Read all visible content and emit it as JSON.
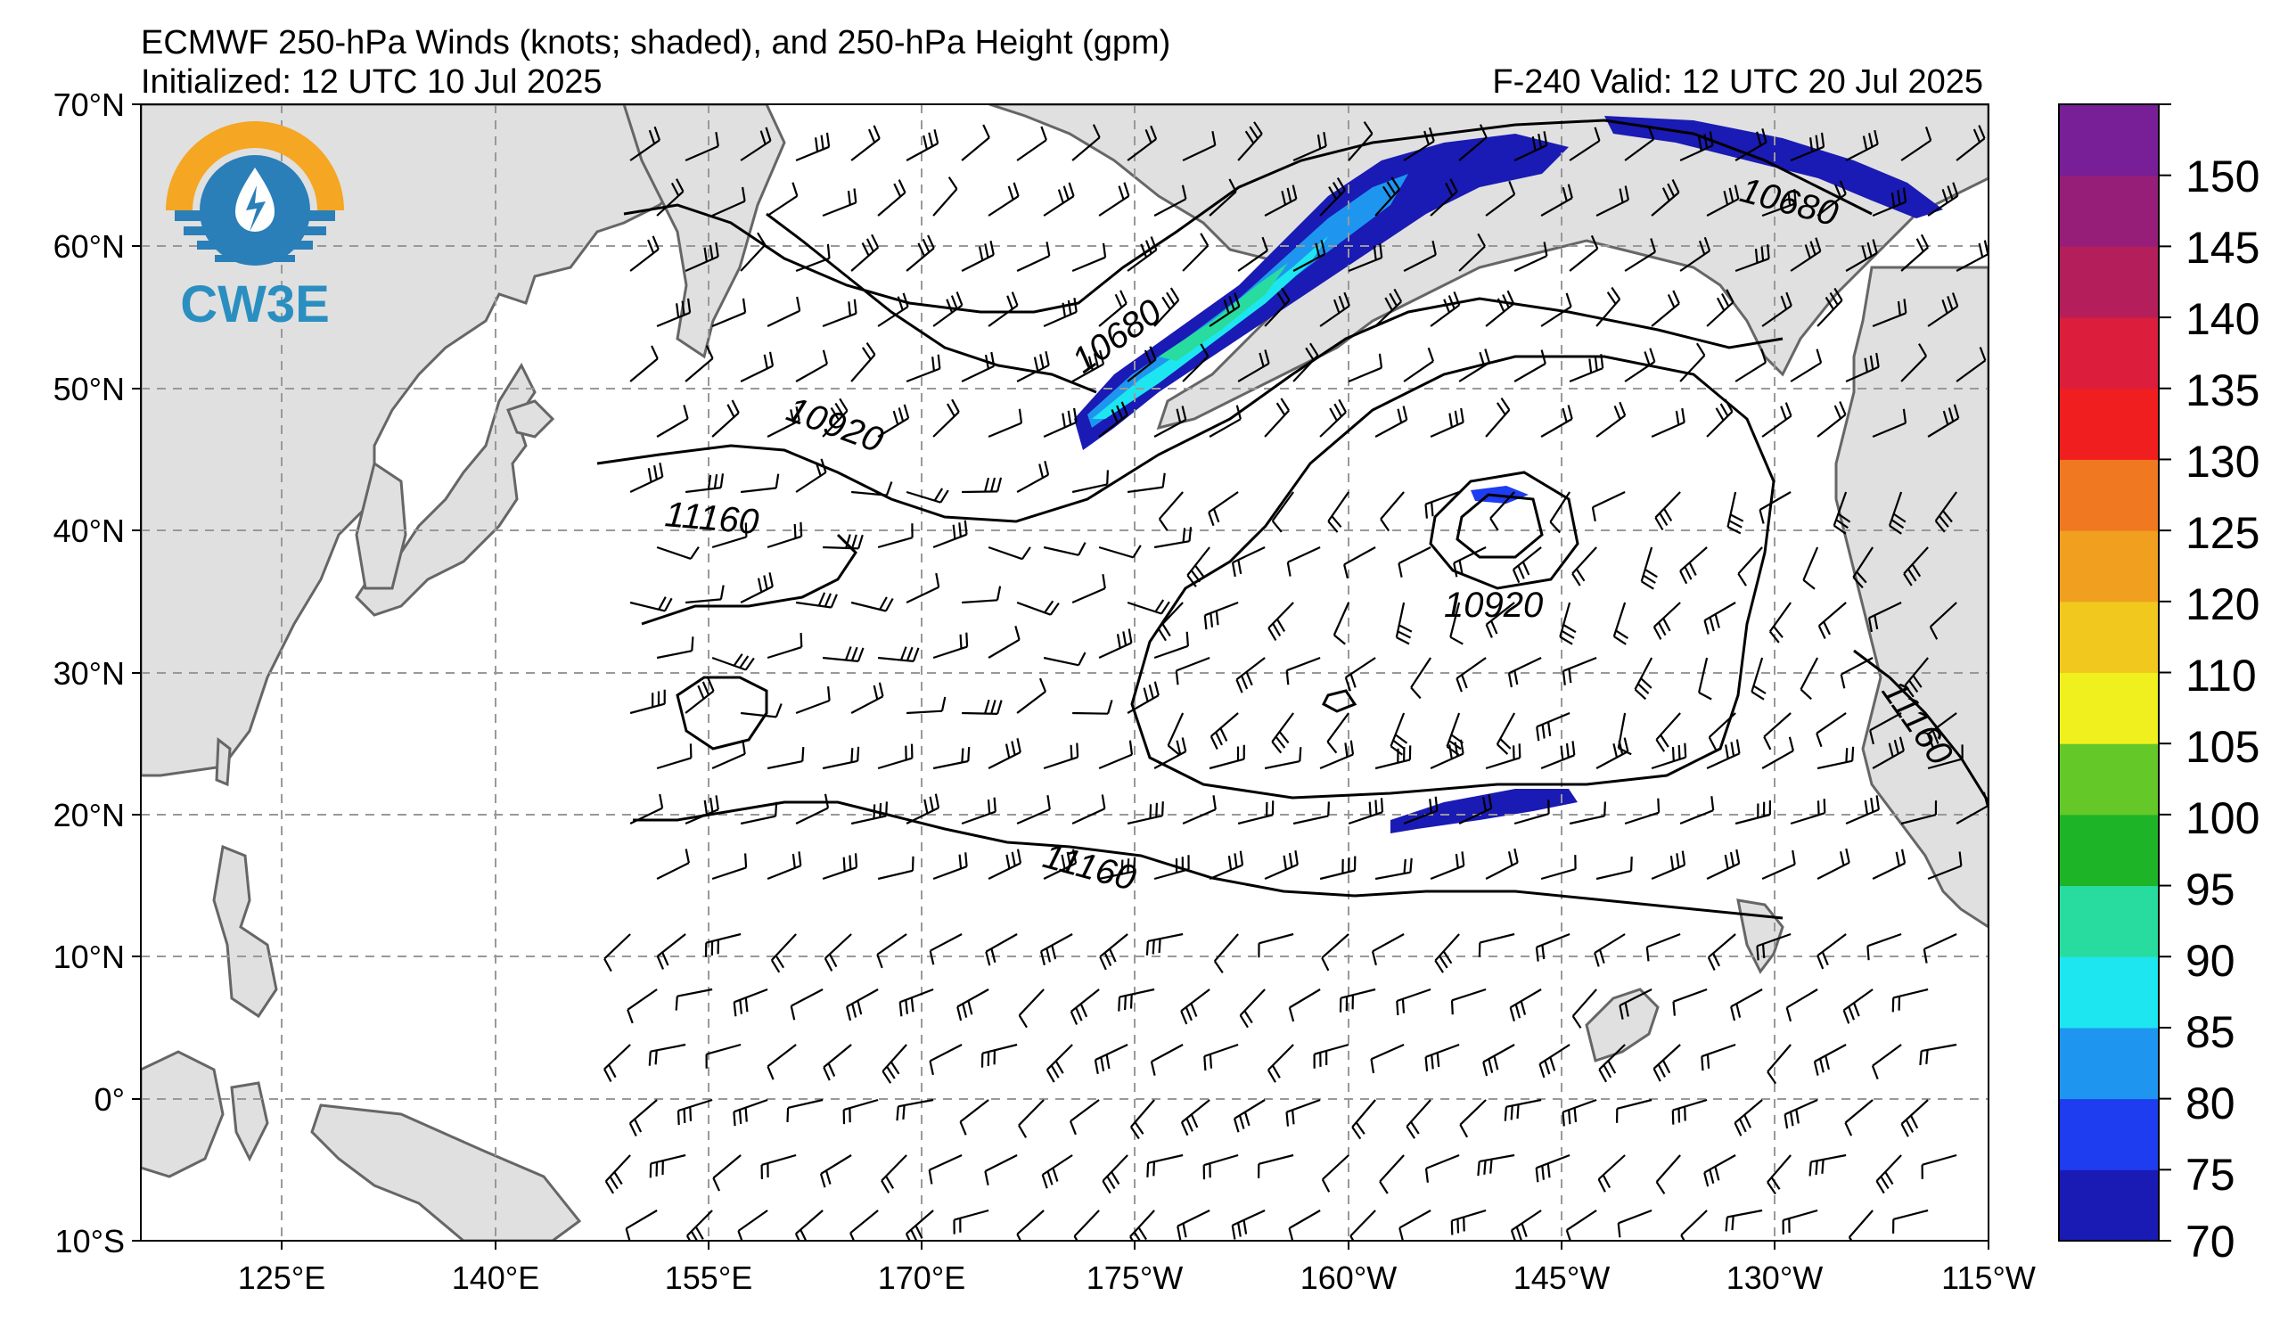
{
  "header": {
    "title": "ECMWF 250-hPa Winds (knots; shaded), and 250-hPa Height (gpm)",
    "initialized": "Initialized: 12 UTC 10 Jul 2025",
    "valid": "F-240  Valid: 12 UTC 20 Jul 2025"
  },
  "logo": {
    "text": "CW3E"
  },
  "axes": {
    "lat_labels": [
      "70°N",
      "60°N",
      "50°N",
      "40°N",
      "30°N",
      "20°N",
      "10°N",
      "0°",
      "10°S"
    ],
    "lon_labels": [
      "125°E",
      "140°E",
      "155°E",
      "170°E",
      "175°W",
      "160°W",
      "145°W",
      "130°W",
      "115°W"
    ],
    "lat_range": [
      -10,
      70
    ],
    "lon_range": [
      115,
      245
    ]
  },
  "colorbar": {
    "ticks": [
      "150",
      "145",
      "140",
      "135",
      "130",
      "125",
      "120",
      "110",
      "105",
      "100",
      "95",
      "90",
      "85",
      "80",
      "75",
      "70"
    ],
    "colors": [
      "#1a1ab4",
      "#1e3cf0",
      "#1e96f0",
      "#1ee6f0",
      "#28dca0",
      "#1eb428",
      "#64c828",
      "#f0f01e",
      "#f0c81e",
      "#f0a01e",
      "#f07820",
      "#f01e1e",
      "#dc1e3c",
      "#b41e5a",
      "#961e78",
      "#781e96"
    ]
  },
  "contour_labels": [
    "10680",
    "10920",
    "11160",
    "10680",
    "10920",
    "11160",
    "11160"
  ],
  "colors": {
    "land": "#e0e0e0",
    "coast": "#666666",
    "grid": "#999999"
  }
}
